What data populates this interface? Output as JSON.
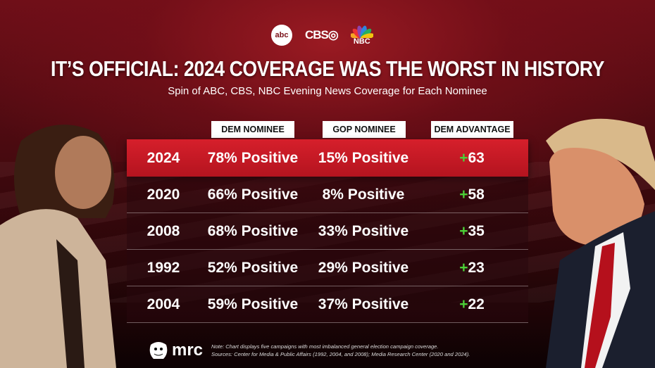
{
  "logos": {
    "abc": "abc",
    "cbs": "CBS",
    "nbc": "NBC",
    "mrc": "mrc"
  },
  "title": "IT’S OFFICIAL: 2024 COVERAGE WAS THE WORST IN HISTORY",
  "subtitle": "Spin of ABC, CBS, NBC Evening News Coverage for Each Nominee",
  "chart_data": {
    "type": "table",
    "columns": [
      "DEM NOMINEE",
      "GOP NOMINEE",
      "DEM ADVANTAGE"
    ],
    "rows": [
      {
        "year": "2024",
        "dem": "78% Positive",
        "gop": "15% Positive",
        "adv": "63"
      },
      {
        "year": "2020",
        "dem": "66% Positive",
        "gop": "8% Positive",
        "adv": "58"
      },
      {
        "year": "2008",
        "dem": "68% Positive",
        "gop": "33% Positive",
        "adv": "35"
      },
      {
        "year": "1992",
        "dem": "52% Positive",
        "gop": "29% Positive",
        "adv": "23"
      },
      {
        "year": "2004",
        "dem": "59% Positive",
        "gop": "37% Positive",
        "adv": "22"
      }
    ],
    "plus_sign": "+"
  },
  "footer": {
    "note": "Note: Chart displays five campaigns with most imbalanced general election campaign coverage.",
    "sources": "Sources: Center for Media & Public Affairs (1992, 2004, and 2008); Media Research Center (2020 and 2024)."
  },
  "colors": {
    "highlight": "#d61f2b",
    "plus": "#4cd137"
  }
}
